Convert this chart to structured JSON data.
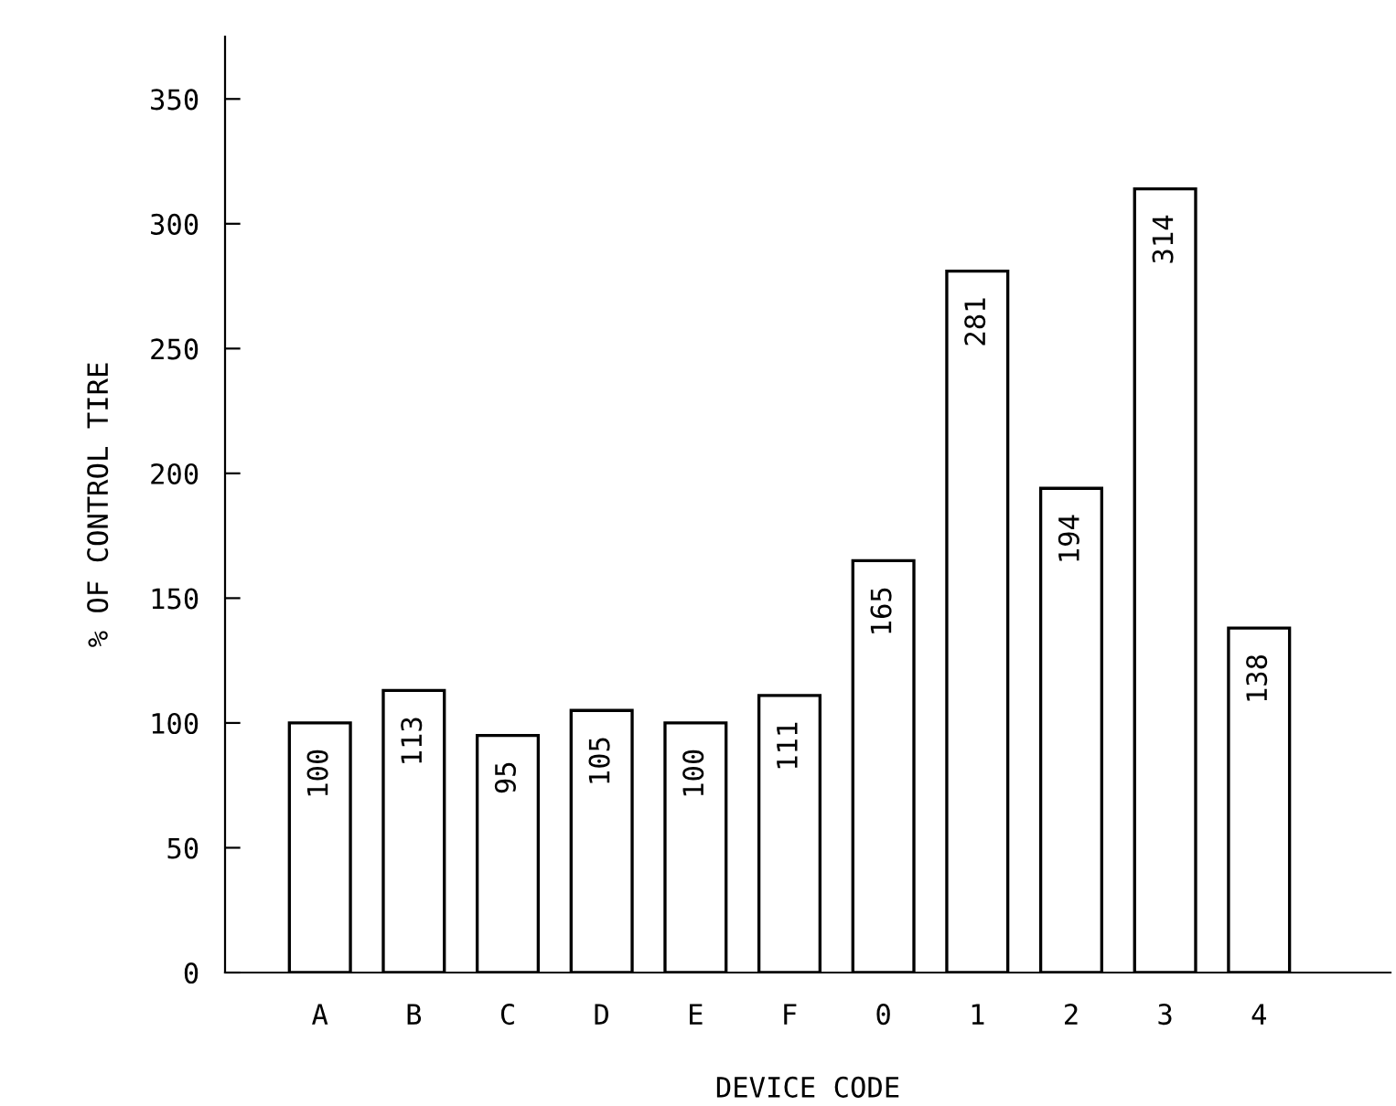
{
  "chart_data": {
    "type": "bar",
    "xlabel": "DEVICE CODE",
    "ylabel": "% OF CONTROL TIRE",
    "categories": [
      "A",
      "B",
      "C",
      "D",
      "E",
      "F",
      "0",
      "1",
      "2",
      "3",
      "4"
    ],
    "values": [
      100,
      113,
      95,
      105,
      100,
      111,
      165,
      281,
      194,
      314,
      138
    ],
    "color": "#ffffff",
    "ylim": [
      0,
      375
    ],
    "yticks": [
      0,
      50,
      100,
      150,
      200,
      250,
      300,
      350
    ],
    "data_labels": true,
    "grid": false,
    "legend": false
  }
}
